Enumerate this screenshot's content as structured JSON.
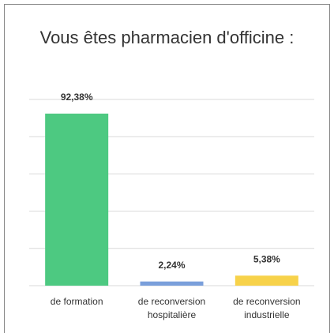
{
  "chart_data": {
    "type": "bar",
    "title": "Vous êtes pharmacien d'officine :",
    "categories": [
      "de formation",
      "de reconversion hospitalière",
      "de reconversion industrielle"
    ],
    "values": [
      92.38,
      2.24,
      5.38
    ],
    "value_labels": [
      "92,38%",
      "2,24%",
      "5,38%"
    ],
    "colors": [
      "#4dc981",
      "#7a9fdb",
      "#f7d24a"
    ],
    "ylim": [
      0,
      100
    ],
    "yticks": [
      0,
      20,
      40,
      60,
      80,
      100
    ],
    "grid": true
  }
}
